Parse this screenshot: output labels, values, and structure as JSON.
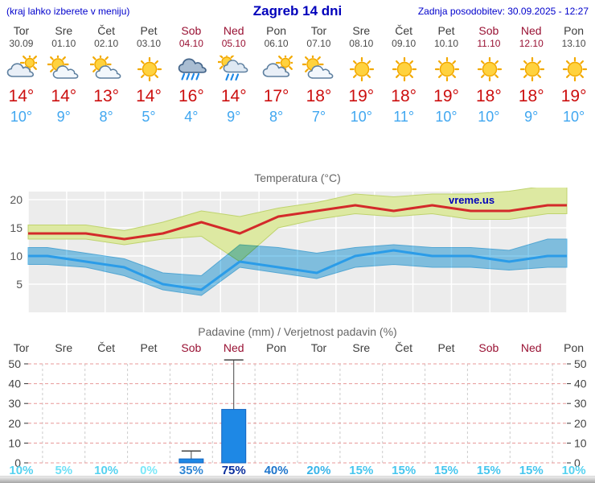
{
  "header": {
    "menu_note": "(kraj lahko izberete v meniju)",
    "title": "Zagreb 14 dni",
    "last_update": "Zadnja posodobitev: 30.09.2025 - 12:27"
  },
  "watermark": "vreme.us",
  "colors": {
    "accent_blue": "#0000cc",
    "tmax_red": "#cc0f0f",
    "tmin_blue": "#41a7f0",
    "weekend_red": "#991133",
    "bar_blue": "#1e88e5",
    "band_green": "#dde9a2",
    "band_blue": "#74c4ec"
  },
  "forecast_days": [
    {
      "name": "Tor",
      "date": "30.09",
      "weekend": false,
      "icon": "cloudy",
      "tmax": "14°",
      "tmin": "10°"
    },
    {
      "name": "Sre",
      "date": "01.10",
      "weekend": false,
      "icon": "partly",
      "tmax": "14°",
      "tmin": "9°"
    },
    {
      "name": "Čet",
      "date": "02.10",
      "weekend": false,
      "icon": "partly",
      "tmax": "13°",
      "tmin": "8°"
    },
    {
      "name": "Pet",
      "date": "03.10",
      "weekend": false,
      "icon": "sun",
      "tmax": "14°",
      "tmin": "5°"
    },
    {
      "name": "Sob",
      "date": "04.10",
      "weekend": true,
      "icon": "rain",
      "tmax": "16°",
      "tmin": "4°"
    },
    {
      "name": "Ned",
      "date": "05.10",
      "weekend": true,
      "icon": "sun-rain",
      "tmax": "14°",
      "tmin": "9°"
    },
    {
      "name": "Pon",
      "date": "06.10",
      "weekend": false,
      "icon": "cloudy",
      "tmax": "17°",
      "tmin": "8°"
    },
    {
      "name": "Tor",
      "date": "07.10",
      "weekend": false,
      "icon": "partly",
      "tmax": "18°",
      "tmin": "7°"
    },
    {
      "name": "Sre",
      "date": "08.10",
      "weekend": false,
      "icon": "sun",
      "tmax": "19°",
      "tmin": "10°"
    },
    {
      "name": "Čet",
      "date": "09.10",
      "weekend": false,
      "icon": "sun",
      "tmax": "18°",
      "tmin": "11°"
    },
    {
      "name": "Pet",
      "date": "10.10",
      "weekend": false,
      "icon": "sun",
      "tmax": "19°",
      "tmin": "10°"
    },
    {
      "name": "Sob",
      "date": "11.10",
      "weekend": true,
      "icon": "sun",
      "tmax": "18°",
      "tmin": "10°"
    },
    {
      "name": "Ned",
      "date": "12.10",
      "weekend": true,
      "icon": "sun",
      "tmax": "18°",
      "tmin": "9°"
    },
    {
      "name": "Pon",
      "date": "13.10",
      "weekend": false,
      "icon": "sun",
      "tmax": "19°",
      "tmin": "10°"
    }
  ],
  "chart_data": [
    {
      "type": "line",
      "title": "Temperatura (°C)",
      "x_labels": [
        "30.09",
        "01.10",
        "02.10",
        "03.10",
        "04.10",
        "05.10",
        "06.10",
        "07.10",
        "08.10",
        "09.10",
        "10.10",
        "11.10",
        "12.10",
        "13.10"
      ],
      "yticks": [
        5,
        10,
        15,
        20
      ],
      "ylim": [
        0,
        21.5
      ],
      "grid": true,
      "series": [
        {
          "name": "t_max",
          "color": "#d32a2a",
          "values": [
            14,
            14,
            13,
            14,
            16,
            14,
            17,
            18,
            19,
            18,
            19,
            18,
            18,
            19
          ]
        },
        {
          "name": "t_min",
          "color": "#2b9ce8",
          "values": [
            10,
            9,
            8,
            5,
            4,
            9,
            8,
            7,
            10,
            11,
            10,
            10,
            9,
            10
          ]
        }
      ],
      "bands": [
        {
          "name": "t_max_range",
          "color": "#dde9a2",
          "edge": "#bfd36e",
          "upper": [
            15.5,
            15.5,
            14.5,
            16,
            18,
            17,
            18.5,
            19.5,
            21,
            20.5,
            21,
            21,
            21.5,
            22.5
          ],
          "lower": [
            13,
            13,
            12,
            13,
            13.5,
            9,
            15,
            16.5,
            17.5,
            17,
            17.5,
            16.5,
            16.5,
            17.5
          ]
        },
        {
          "name": "t_min_range",
          "color": "#74c4ec",
          "edge": "#5ab4e4",
          "upper": [
            11.5,
            10.5,
            9.5,
            7,
            6.5,
            12,
            11.5,
            10.5,
            11.5,
            12,
            11.5,
            11.5,
            11,
            13
          ],
          "lower": [
            8.5,
            8,
            6.5,
            4,
            3,
            8,
            7,
            6,
            8,
            8.5,
            8,
            8,
            7.5,
            8
          ]
        }
      ]
    },
    {
      "type": "bar",
      "title": "Padavine (mm) / Verjetnost padavin (%)",
      "categories": [
        "Tor",
        "Sre",
        "Čet",
        "Pet",
        "Sob",
        "Ned",
        "Pon",
        "Tor",
        "Sre",
        "Čet",
        "Pet",
        "Sob",
        "Ned",
        "Pon"
      ],
      "weekend": [
        false,
        false,
        false,
        false,
        true,
        true,
        false,
        false,
        false,
        false,
        false,
        true,
        true,
        false
      ],
      "values_mm": [
        0,
        0,
        0,
        0,
        2,
        27,
        0,
        0,
        0,
        0,
        0,
        0,
        0,
        0
      ],
      "whisker_max_mm": [
        0,
        0,
        0,
        0,
        6,
        52,
        0,
        0,
        0,
        0,
        0,
        0,
        0,
        0
      ],
      "yticks": [
        0,
        10,
        20,
        30,
        40,
        50
      ],
      "ylim": [
        0,
        52
      ],
      "bar_color": "#1e88e5",
      "bar_edge": "#1565c0",
      "probability_labels": [
        "10%",
        "5%",
        "10%",
        "0%",
        "35%",
        "75%",
        "40%",
        "20%",
        "15%",
        "15%",
        "15%",
        "15%",
        "15%",
        "10%"
      ],
      "probability_pct": [
        10,
        5,
        10,
        0,
        35,
        75,
        40,
        20,
        15,
        15,
        15,
        15,
        15,
        10
      ],
      "probability_colors": [
        "#55d2f0",
        "#6fe0f6",
        "#55d2f0",
        "#7ce8f8",
        "#2f86d4",
        "#0a2f9e",
        "#1f76cc",
        "#38b4e8",
        "#46c6ee",
        "#46c6ee",
        "#46c6ee",
        "#46c6ee",
        "#46c6ee",
        "#55d2f0"
      ]
    }
  ]
}
